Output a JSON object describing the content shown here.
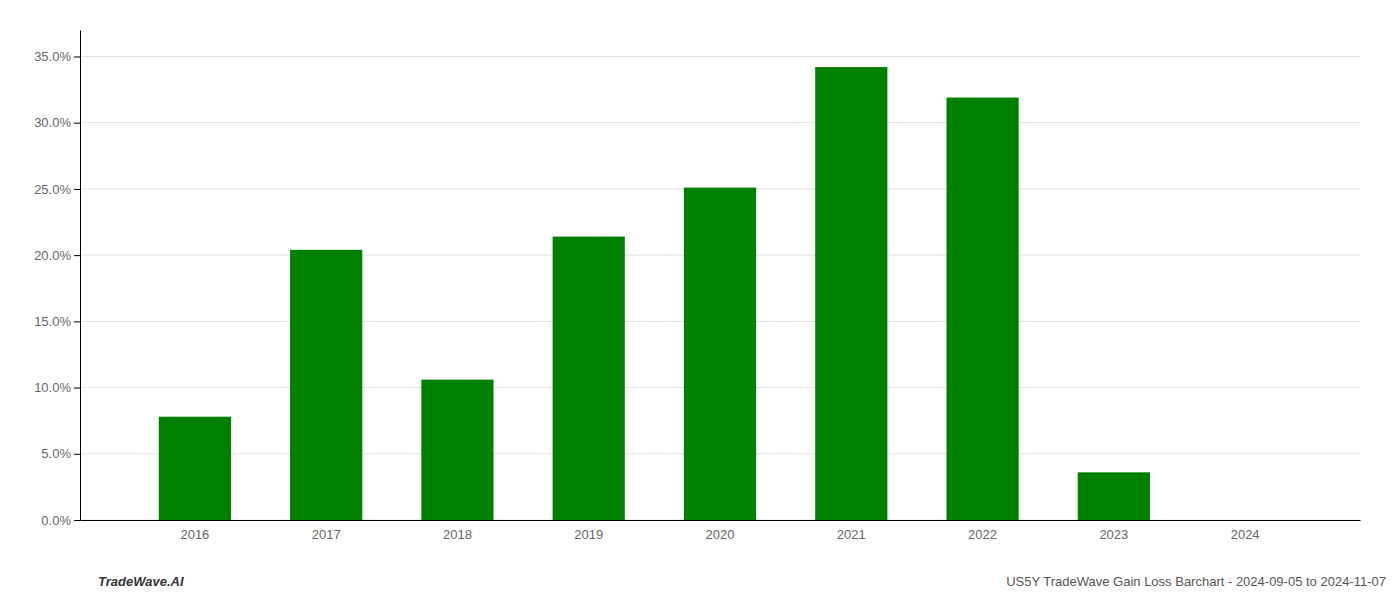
{
  "chart_data": {
    "type": "bar",
    "categories": [
      "2016",
      "2017",
      "2018",
      "2019",
      "2020",
      "2021",
      "2022",
      "2023",
      "2024"
    ],
    "values": [
      0.078,
      0.204,
      0.106,
      0.214,
      0.251,
      0.342,
      0.319,
      0.036,
      0.0
    ],
    "color": "#008000",
    "ylim": [
      0.0,
      0.37
    ],
    "yticks": [
      {
        "value": 0.0,
        "label": "0.0%"
      },
      {
        "value": 0.05,
        "label": "5.0%"
      },
      {
        "value": 0.1,
        "label": "10.0%"
      },
      {
        "value": 0.15,
        "label": "15.0%"
      },
      {
        "value": 0.2,
        "label": "20.0%"
      },
      {
        "value": 0.25,
        "label": "25.0%"
      },
      {
        "value": 0.3,
        "label": "30.0%"
      },
      {
        "value": 0.35,
        "label": "35.0%"
      }
    ],
    "grid": true,
    "annotations": [
      "TradeWave.AI",
      "US5Y TradeWave Gain Loss Barchart - 2024-09-05 to 2024-11-07"
    ]
  }
}
